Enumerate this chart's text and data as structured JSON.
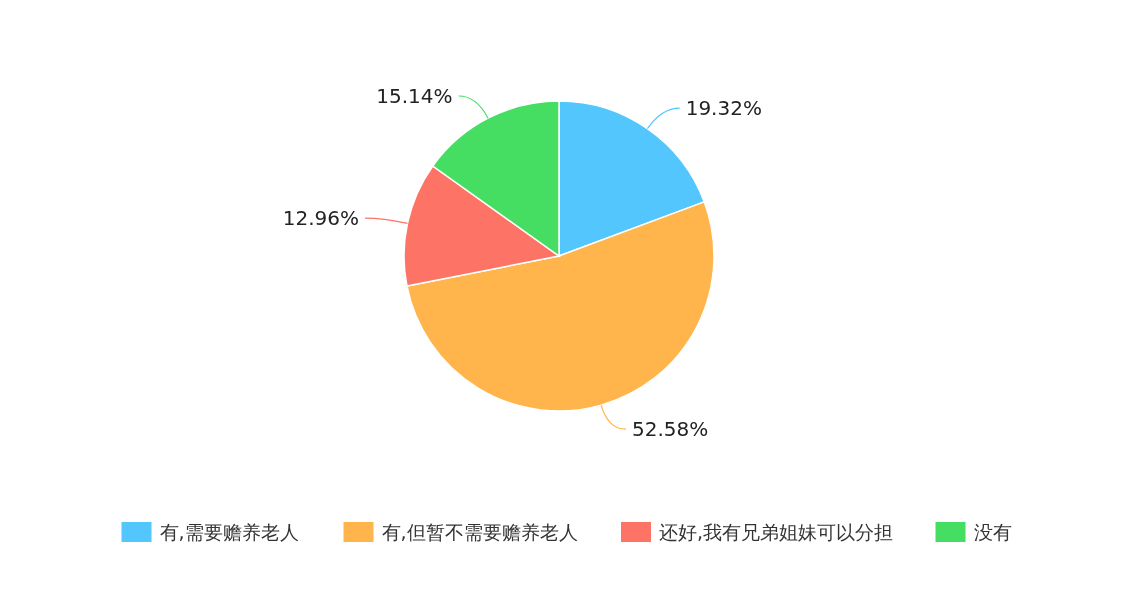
{
  "chart_data": {
    "type": "pie",
    "categories": [
      "有,需要赡养老人",
      "有,但暂不需要赡养老人",
      "还好,我有兄弟姐妹可以分担",
      "没有"
    ],
    "values": [
      19.32,
      52.58,
      12.96,
      15.14
    ],
    "value_labels": [
      "19.32%",
      "52.58%",
      "12.96%",
      "15.14%"
    ],
    "colors": [
      "#53c7fd",
      "#ffb54b",
      "#fd7466",
      "#46de62"
    ],
    "legend": "bottom"
  }
}
